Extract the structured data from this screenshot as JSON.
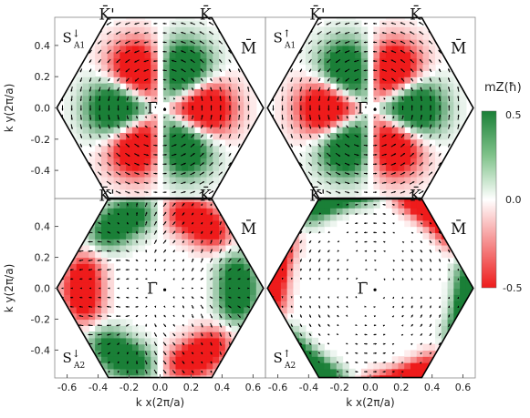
{
  "chart_data": [
    {
      "type": "heatmap",
      "panel": "S↓ A1",
      "xlim": [
        -0.68,
        0.68
      ],
      "ylim": [
        -0.58,
        0.58
      ],
      "yticks": [
        "0.4",
        "0.2",
        "0.0",
        "-0.2",
        "-0.4"
      ],
      "xticks": [],
      "ylabel": "k y(2π/a)",
      "labels": {
        "K_prime": "K̄'",
        "K": "K̄",
        "M": "M̄",
        "Gamma": "Γ̄"
      },
      "spin_label": {
        "base": "S",
        "sup": "↓",
        "sub": "A1"
      },
      "pattern": {
        "sign": -1,
        "mode": 2,
        "ring_center": 0.3,
        "ring_width": 0.18,
        "arrows": "vortex"
      }
    },
    {
      "type": "heatmap",
      "panel": "S↑ A1",
      "xlim": [
        -0.68,
        0.68
      ],
      "ylim": [
        -0.58,
        0.58
      ],
      "yticks": [],
      "xticks": [],
      "labels": {
        "K_prime": "K̄'",
        "K": "K̄",
        "M": "M̄",
        "Gamma": "Γ̄"
      },
      "spin_label": {
        "base": "S",
        "sup": "↑",
        "sub": "A1"
      },
      "pattern": {
        "sign": 1,
        "mode": 2,
        "ring_center": 0.3,
        "ring_width": 0.18,
        "arrows": "vortex"
      }
    },
    {
      "type": "heatmap",
      "panel": "S↓ A2",
      "xlim": [
        -0.68,
        0.68
      ],
      "ylim": [
        -0.58,
        0.58
      ],
      "yticks": [
        "0.4",
        "0.2",
        "0.0",
        "-0.2",
        "-0.4"
      ],
      "xticks": [
        "-0.6",
        "-0.4",
        "-0.2",
        "0.0",
        "0.2",
        "0.4",
        "0.6"
      ],
      "ylabel": "k y(2π/a)",
      "xlabel": "k x(2π/a)",
      "labels": {
        "K_prime": "K̄'",
        "K": "K̄",
        "M": "M̄",
        "Gamma": "Γ̄"
      },
      "spin_label": {
        "base": "S",
        "sup": "↓",
        "sub": "A2"
      },
      "pattern": {
        "sign": 1,
        "mode": 2,
        "ring_center": 0.5,
        "ring_width": 0.12,
        "arrows": "radial"
      }
    },
    {
      "type": "heatmap",
      "panel": "S↑ A2",
      "xlim": [
        -0.68,
        0.68
      ],
      "ylim": [
        -0.58,
        0.58
      ],
      "yticks": [],
      "xticks": [
        "-0.6",
        "-0.4",
        "-0.2",
        "0.0",
        "0.2",
        "0.4",
        "0.6"
      ],
      "xlabel": "k x(2π/a)",
      "labels": {
        "K_prime": "K̄'",
        "K": "K̄",
        "M": "M̄",
        "Gamma": "Γ̄"
      },
      "spin_label": {
        "base": "S",
        "sup": "↑",
        "sub": "A2"
      },
      "pattern": {
        "sign": 1,
        "mode": 4,
        "ring_center": 0.62,
        "ring_width": 0.08,
        "arrows": "sparse"
      }
    }
  ],
  "colorbar": {
    "title": "m_z(ħ)",
    "title_text": "mZ(ħ)",
    "range": [
      -0.5,
      0.5
    ],
    "ticks": [
      "0.5",
      "0.0",
      "-0.5"
    ],
    "colors": {
      "positive": "#1a7f37",
      "zero": "#ffffff",
      "negative": "#ee1b1b"
    }
  }
}
